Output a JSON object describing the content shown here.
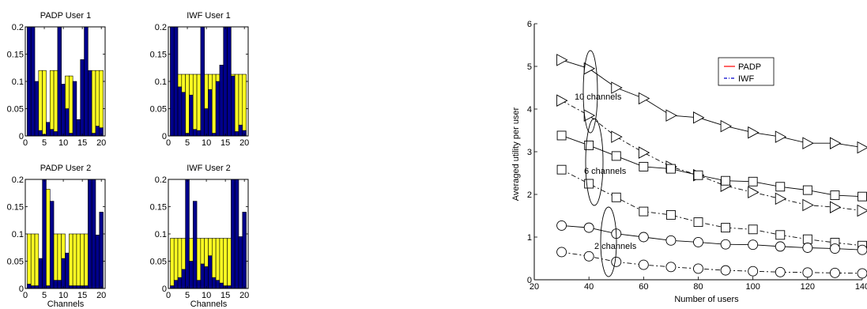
{
  "colors": {
    "yellow": "#ffff22",
    "blue": "#00008b",
    "padp_legend": "#ff0000",
    "iwf_legend": "#0000cc",
    "line": "#000000"
  },
  "chart_data": [
    {
      "type": "bar",
      "title": "PADP User 1",
      "xlabel": "",
      "ylabel": "",
      "xlim": [
        0,
        21
      ],
      "ylim": [
        0,
        0.2
      ],
      "yticks": [
        "0",
        "0.05",
        "0.1",
        "0.15",
        "0.2"
      ],
      "xticks": [
        "0",
        "5",
        "10",
        "15",
        "20"
      ],
      "categories": [
        1,
        2,
        3,
        4,
        5,
        6,
        7,
        8,
        9,
        10,
        11,
        12,
        13,
        14,
        15,
        16,
        17,
        18,
        19,
        20
      ],
      "series": [
        {
          "values": [
            0.2,
            0.2,
            0.1,
            0.01,
            0.003,
            0.025,
            0.012,
            0.008,
            0.2,
            0.095,
            0.05,
            0.005,
            0.1,
            0.03,
            0.14,
            0.2,
            0.12,
            0.005,
            0.018,
            0.015
          ]
        },
        {
          "values": [
            0,
            0,
            0,
            0.11,
            0.117,
            0,
            0.108,
            0.112,
            0,
            0,
            0.06,
            0.105,
            0,
            0,
            0,
            0,
            0,
            0.115,
            0.102,
            0.105
          ]
        }
      ]
    },
    {
      "type": "bar",
      "title": "IWF User 1",
      "xlabel": "",
      "ylabel": "",
      "xlim": [
        0,
        21
      ],
      "ylim": [
        0,
        0.2
      ],
      "yticks": [
        "0",
        "0.05",
        "0.1",
        "0.15",
        "0.2"
      ],
      "xticks": [
        "0",
        "5",
        "10",
        "15",
        "20"
      ],
      "categories": [
        1,
        2,
        3,
        4,
        5,
        6,
        7,
        8,
        9,
        10,
        11,
        12,
        13,
        14,
        15,
        16,
        17,
        18,
        19,
        20
      ],
      "series": [
        {
          "values": [
            0.2,
            0.2,
            0.09,
            0.08,
            0.005,
            0.075,
            0.012,
            0.01,
            0.2,
            0.05,
            0.085,
            0.005,
            0.1,
            0.13,
            0.2,
            0.2,
            0.11,
            0.008,
            0.02,
            0.01
          ]
        },
        {
          "values": [
            0,
            0,
            0.023,
            0.033,
            0.108,
            0.038,
            0.101,
            0.103,
            0,
            0.063,
            0.028,
            0.108,
            0.013,
            0,
            0,
            0,
            0.003,
            0.105,
            0.093,
            0.103
          ]
        }
      ]
    },
    {
      "type": "bar",
      "title": "PADP User 2",
      "xlabel": "Channels",
      "ylabel": "",
      "xlim": [
        0,
        21
      ],
      "ylim": [
        0,
        0.2
      ],
      "yticks": [
        "0",
        "0.05",
        "0.1",
        "0.15",
        "0.2"
      ],
      "xticks": [
        "0",
        "5",
        "10",
        "15",
        "20"
      ],
      "categories": [
        1,
        2,
        3,
        4,
        5,
        6,
        7,
        8,
        9,
        10,
        11,
        12,
        13,
        14,
        15,
        16,
        17,
        18,
        19,
        20
      ],
      "series": [
        {
          "values": [
            0.008,
            0.005,
            0.005,
            0.055,
            0.2,
            0.005,
            0.16,
            0.015,
            0.015,
            0.055,
            0.065,
            0.005,
            0.005,
            0.005,
            0.005,
            0.005,
            0.2,
            0.2,
            0.098,
            0.14
          ]
        },
        {
          "values": [
            0.092,
            0.095,
            0.095,
            0,
            0,
            0.177,
            0,
            0.085,
            0.085,
            0.045,
            0,
            0.095,
            0.095,
            0.095,
            0.095,
            0.095,
            0,
            0,
            0,
            0
          ]
        }
      ]
    },
    {
      "type": "bar",
      "title": "IWF User 2",
      "xlabel": "Channels",
      "ylabel": "",
      "xlim": [
        0,
        21
      ],
      "ylim": [
        0,
        0.2
      ],
      "yticks": [
        "0",
        "0.05",
        "0.1",
        "0.15",
        "0.2"
      ],
      "xticks": [
        "0",
        "5",
        "10",
        "15",
        "20"
      ],
      "categories": [
        1,
        2,
        3,
        4,
        5,
        6,
        7,
        8,
        9,
        10,
        11,
        12,
        13,
        14,
        15,
        16,
        17,
        18,
        19,
        20
      ],
      "series": [
        {
          "values": [
            0.005,
            0.015,
            0.02,
            0.035,
            0.2,
            0.05,
            0.16,
            0.015,
            0.045,
            0.04,
            0.06,
            0.02,
            0.015,
            0.01,
            0.005,
            0.005,
            0.2,
            0.2,
            0.095,
            0.14
          ]
        },
        {
          "values": [
            0.087,
            0.077,
            0.072,
            0.057,
            0,
            0.042,
            0,
            0.077,
            0.047,
            0.052,
            0.032,
            0.072,
            0.077,
            0.082,
            0.087,
            0.087,
            0,
            0,
            0,
            0
          ]
        }
      ]
    },
    {
      "type": "line",
      "title": "",
      "xlabel": "Number of users",
      "ylabel": "Averaged utility per user",
      "xlim": [
        20,
        140
      ],
      "ylim": [
        0,
        6
      ],
      "xticks": [
        "20",
        "40",
        "60",
        "80",
        "100",
        "120",
        "140"
      ],
      "yticks": [
        "0",
        "1",
        "2",
        "3",
        "4",
        "5",
        "6"
      ],
      "legend": {
        "position": "top-right",
        "entries": [
          "PADP",
          "IWF"
        ]
      },
      "annotations": [
        "10 channels",
        "6 channels",
        "2 channels"
      ],
      "x": [
        30,
        40,
        50,
        60,
        70,
        80,
        90,
        100,
        110,
        120,
        130,
        140
      ],
      "series": [
        {
          "name": "PADP",
          "marker": "triangle-right",
          "dash": "solid",
          "values": [
            5.15,
            4.95,
            4.5,
            4.25,
            3.85,
            3.8,
            3.6,
            3.45,
            3.35,
            3.2,
            3.2,
            3.1
          ]
        },
        {
          "name": "IWF",
          "marker": "triangle-right",
          "dash": "dashdot",
          "values": [
            4.2,
            3.85,
            3.35,
            2.98,
            2.65,
            2.45,
            2.2,
            2.05,
            1.9,
            1.75,
            1.7,
            1.62
          ]
        },
        {
          "name": "PADP",
          "marker": "square",
          "dash": "solid",
          "values": [
            3.38,
            3.15,
            2.9,
            2.65,
            2.6,
            2.45,
            2.32,
            2.3,
            2.18,
            2.1,
            1.98,
            1.95
          ]
        },
        {
          "name": "IWF",
          "marker": "square",
          "dash": "dashdot",
          "values": [
            2.58,
            2.25,
            1.93,
            1.6,
            1.52,
            1.35,
            1.22,
            1.18,
            1.05,
            0.95,
            0.87,
            0.8
          ]
        },
        {
          "name": "PADP",
          "marker": "circle",
          "dash": "solid",
          "values": [
            1.27,
            1.22,
            1.08,
            1.0,
            0.92,
            0.88,
            0.83,
            0.82,
            0.78,
            0.75,
            0.73,
            0.7
          ]
        },
        {
          "name": "IWF",
          "marker": "circle",
          "dash": "dashdot",
          "values": [
            0.65,
            0.55,
            0.42,
            0.35,
            0.3,
            0.26,
            0.22,
            0.2,
            0.18,
            0.17,
            0.16,
            0.15
          ]
        }
      ]
    }
  ]
}
